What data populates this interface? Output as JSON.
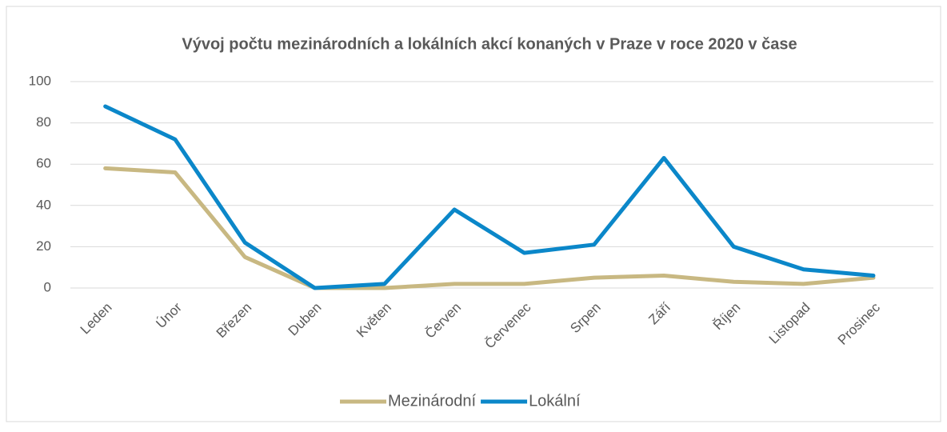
{
  "chart_data": {
    "type": "line",
    "title": "Vývoj počtu mezinárodních a lokálních akcí konaných v Praze v roce 2020 v čase",
    "categories": [
      "Leden",
      "Únor",
      "Březen",
      "Duben",
      "Květen",
      "Červen",
      "Červenec",
      "Srpen",
      "Září",
      "Říjen",
      "Listopad",
      "Prosinec"
    ],
    "series": [
      {
        "name": "Mezinárodní",
        "color": "#c8b882",
        "values": [
          58,
          56,
          15,
          0,
          0,
          2,
          2,
          5,
          6,
          3,
          2,
          5
        ]
      },
      {
        "name": "Lokální",
        "color": "#0b87c9",
        "values": [
          88,
          72,
          22,
          0,
          2,
          38,
          17,
          21,
          63,
          20,
          9,
          6
        ]
      }
    ],
    "ylim": [
      0,
      100
    ],
    "yticks": [
      0,
      20,
      40,
      60,
      80,
      100
    ],
    "grid": true,
    "legend": "bottom"
  }
}
